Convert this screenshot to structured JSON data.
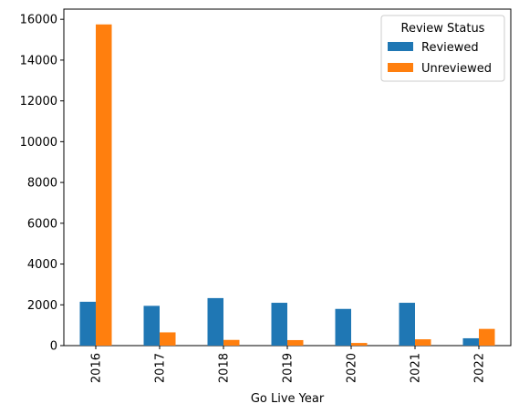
{
  "chart_data": {
    "type": "bar",
    "title": "",
    "xlabel": "Go Live Year",
    "ylabel": "",
    "categories": [
      "2016",
      "2017",
      "2018",
      "2019",
      "2020",
      "2021",
      "2022"
    ],
    "series": [
      {
        "name": "Reviewed",
        "color": "#1f77b4",
        "values": [
          2150,
          1950,
          2330,
          2100,
          1800,
          2100,
          360
        ]
      },
      {
        "name": "Unreviewed",
        "color": "#ff7f0e",
        "values": [
          15750,
          650,
          280,
          270,
          130,
          310,
          820
        ]
      }
    ],
    "ylim": [
      0,
      16500
    ],
    "yticks": [
      0,
      2000,
      4000,
      6000,
      8000,
      10000,
      12000,
      14000,
      16000
    ],
    "legend": {
      "title": "Review Status",
      "placement": "top-right"
    },
    "grid": false
  }
}
